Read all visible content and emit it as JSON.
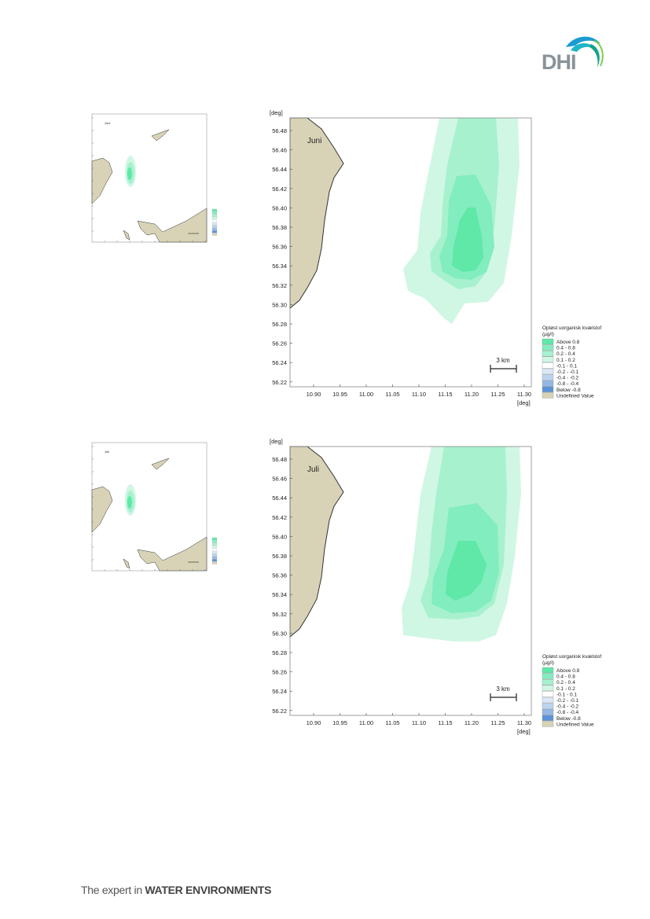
{
  "header": {
    "logo_text": "DHI"
  },
  "footer": {
    "tagline_light": "The expert in ",
    "tagline_bold": "WATER ENVIRONMENTS"
  },
  "axis_unit": "[deg]",
  "legend": {
    "title_line1": "Opløst uorganisk kvælstof",
    "title_line2": "(µg/l)",
    "items": [
      {
        "label": "Above  0.8",
        "color": "#5fe8a8"
      },
      {
        "label": "0.4 -  0.8",
        "color": "#82edbe"
      },
      {
        "label": "0.2 -  0.4",
        "color": "#a7f1cf"
      },
      {
        "label": "0.1 -  0.2",
        "color": "#d0f7e4"
      },
      {
        "label": "-0.1 -  0.1",
        "color": "#ffffff"
      },
      {
        "label": "-0.2 - -0.1",
        "color": "#dce8f5"
      },
      {
        "label": "-0.4 - -0.2",
        "color": "#bcd3ee"
      },
      {
        "label": "-0.8 - -0.4",
        "color": "#93b8e6"
      },
      {
        "label": "Below -0.8",
        "color": "#5b93d8"
      },
      {
        "label": "Undefined Value",
        "color": "#d8d3b7"
      }
    ]
  },
  "scale_bar_label": "3 km",
  "x_ticks": [
    "10.90",
    "10.95",
    "11.00",
    "11.05",
    "11.10",
    "11.15",
    "11.20",
    "11.25",
    "11.30"
  ],
  "y_ticks": [
    "56.48",
    "56.46",
    "56.44",
    "56.42",
    "56.40",
    "56.38",
    "56.36",
    "56.34",
    "56.32",
    "56.30",
    "56.28",
    "56.26",
    "56.24",
    "56.22"
  ],
  "maps": [
    {
      "month": "Juni"
    },
    {
      "month": "Juli"
    }
  ],
  "colors": {
    "land": "#d8d3b7",
    "coast": "#333333"
  }
}
